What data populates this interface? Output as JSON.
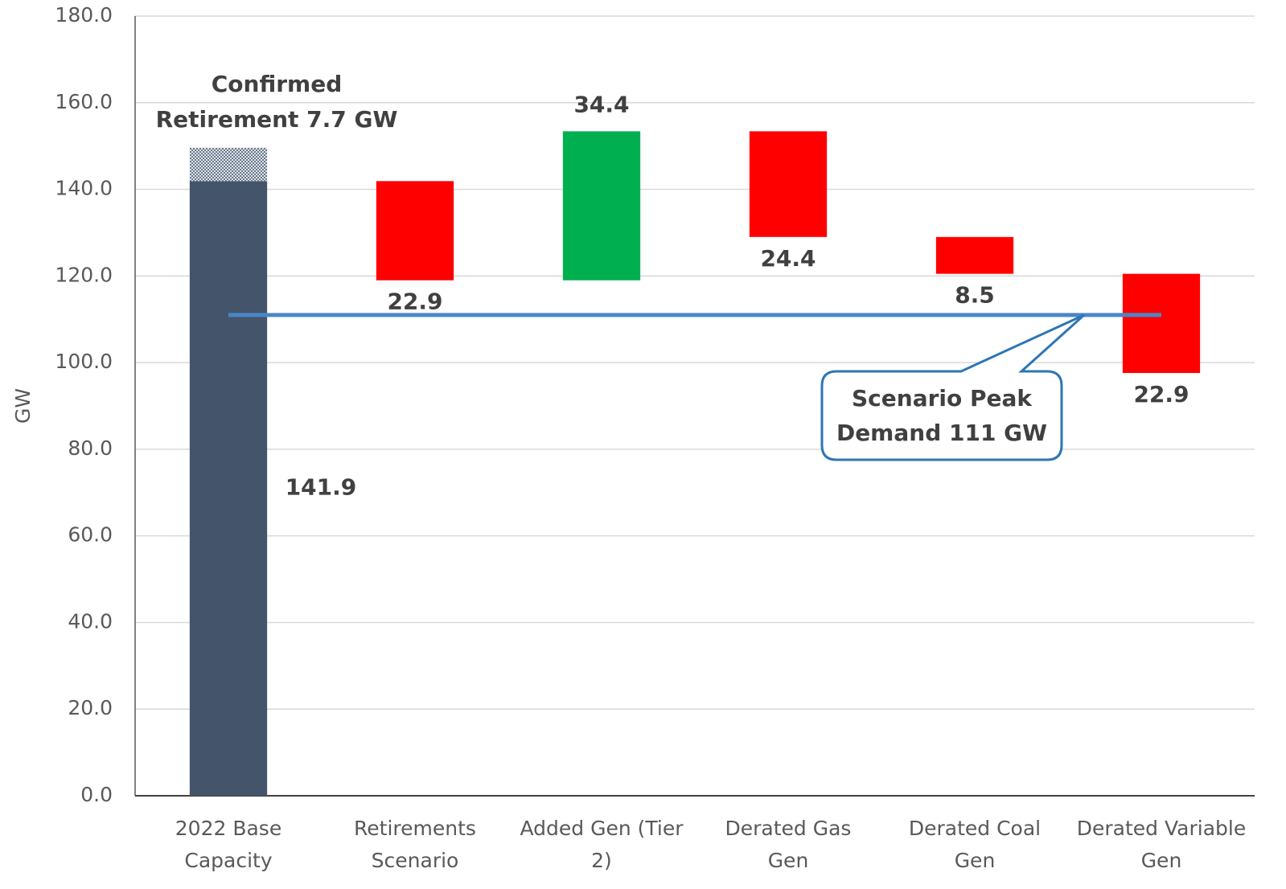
{
  "chart_data": {
    "type": "waterfall",
    "y_label": "GW",
    "categories": [
      "2022 Base\nCapacity",
      "Retirements\nScenario",
      "Added Gen (Tier\n2)",
      "Derated Gas\nGen",
      "Derated Coal\nGen",
      "Derated Variable\nGen"
    ],
    "values": [
      141.9,
      -22.9,
      34.4,
      -24.4,
      -8.5,
      -22.9
    ],
    "value_labels": [
      "141.9",
      "22.9",
      "34.4",
      "24.4",
      "8.5",
      "22.9"
    ],
    "colors": [
      "#44546a",
      "#ff0000",
      "#00b050",
      "#ff0000",
      "#ff0000",
      "#ff0000"
    ],
    "ylim": [
      0,
      180
    ],
    "yticks": [
      {
        "value": 0,
        "label": "0.0"
      },
      {
        "value": 20,
        "label": "20.0"
      },
      {
        "value": 40,
        "label": "40.0"
      },
      {
        "value": 60,
        "label": "60.0"
      },
      {
        "value": 80,
        "label": "80.0"
      },
      {
        "value": 100,
        "label": "100.0"
      },
      {
        "value": 120,
        "label": "120.0"
      },
      {
        "value": 140,
        "label": "140.0"
      },
      {
        "value": 160,
        "label": "160.0"
      },
      {
        "value": 180,
        "label": "180.0"
      }
    ],
    "grid": true,
    "confirmed_retirement": {
      "value": 7.7,
      "label_lines": [
        "Confirmed",
        "Retirement 7.7 GW"
      ]
    },
    "peak_demand": {
      "value": 111,
      "color": "#4a86c8",
      "label_lines": [
        "Scenario Peak",
        "Demand 111 GW"
      ]
    }
  }
}
